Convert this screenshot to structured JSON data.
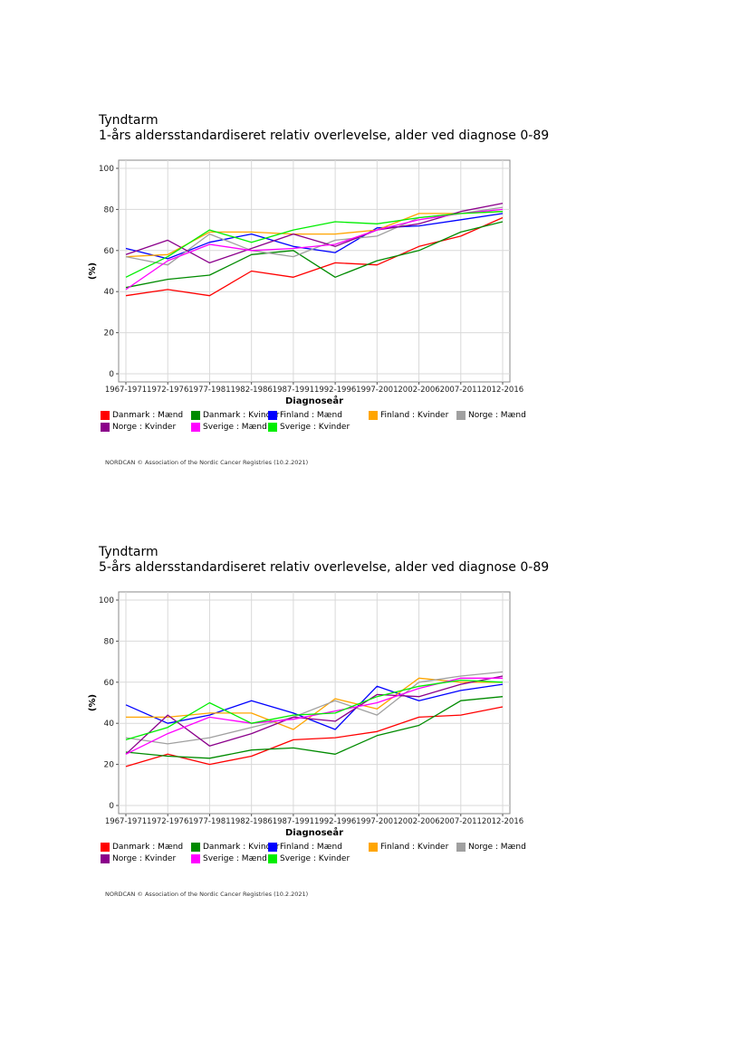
{
  "chart_data": [
    {
      "type": "line",
      "title": "Tyndtarm",
      "subtitle": "1-års aldersstandardiseret relativ overlevelse, alder ved diagnose 0-89",
      "xlabel": "Diagnoseår",
      "ylabel": "(%)",
      "ylim": [
        0,
        100
      ],
      "yticks": [
        "0",
        "20",
        "40",
        "60",
        "80",
        "100"
      ],
      "categories": [
        "1967-1971",
        "1972-1976",
        "1977-1981",
        "1982-1986",
        "1987-1991",
        "1992-1996",
        "1997-2001",
        "2002-2006",
        "2007-2011",
        "2012-2016"
      ],
      "grid": true,
      "legend_position": "bottom",
      "series": [
        {
          "name": "Danmark : Mænd",
          "color": "#ff0000",
          "values": [
            38,
            41,
            38,
            50,
            47,
            54,
            53,
            62,
            67,
            76
          ]
        },
        {
          "name": "Danmark : Kvinder",
          "color": "#008b00",
          "values": [
            42,
            46,
            48,
            58,
            60,
            47,
            55,
            60,
            69,
            74
          ]
        },
        {
          "name": "Finland : Mænd",
          "color": "#0000ff",
          "values": [
            61,
            56,
            64,
            68,
            62,
            59,
            71,
            72,
            75,
            78
          ]
        },
        {
          "name": "Finland : Kvinder",
          "color": "#ffa500",
          "values": [
            57,
            58,
            69,
            69,
            68,
            68,
            70,
            78,
            78,
            79
          ]
        },
        {
          "name": "Norge : Mænd",
          "color": "#a0a0a0",
          "values": [
            57,
            53,
            68,
            60,
            57,
            65,
            67,
            76,
            78,
            81
          ]
        },
        {
          "name": "Norge : Kvinder",
          "color": "#8b008b",
          "values": [
            58,
            65,
            54,
            61,
            68,
            62,
            70,
            73,
            79,
            83
          ]
        },
        {
          "name": "Sverige : Mænd",
          "color": "#ff00ff",
          "values": [
            41,
            55,
            63,
            60,
            61,
            63,
            70,
            75,
            78,
            80
          ]
        },
        {
          "name": "Sverige : Kvinder",
          "color": "#00ee00",
          "values": [
            47,
            57,
            70,
            64,
            70,
            74,
            73,
            76,
            78,
            79
          ]
        }
      ],
      "credit": "NORDCAN © Association of the Nordic Cancer Registries (10.2.2021)"
    },
    {
      "type": "line",
      "title": "Tyndtarm",
      "subtitle": "5-års aldersstandardiseret relativ overlevelse, alder ved diagnose 0-89",
      "xlabel": "Diagnoseår",
      "ylabel": "(%)",
      "ylim": [
        0,
        100
      ],
      "yticks": [
        "0",
        "20",
        "40",
        "60",
        "80",
        "100"
      ],
      "categories": [
        "1967-1971",
        "1972-1976",
        "1977-1981",
        "1982-1986",
        "1987-1991",
        "1992-1996",
        "1997-2001",
        "2002-2006",
        "2007-2011",
        "2012-2016"
      ],
      "grid": true,
      "legend_position": "bottom",
      "series": [
        {
          "name": "Danmark : Mænd",
          "color": "#ff0000",
          "values": [
            19,
            25,
            20,
            24,
            32,
            33,
            36,
            43,
            44,
            48
          ]
        },
        {
          "name": "Danmark : Kvinder",
          "color": "#008b00",
          "values": [
            26,
            24,
            23,
            27,
            28,
            25,
            34,
            39,
            51,
            53
          ]
        },
        {
          "name": "Finland : Mænd",
          "color": "#0000ff",
          "values": [
            49,
            40,
            44,
            51,
            45,
            37,
            58,
            51,
            56,
            59
          ]
        },
        {
          "name": "Finland : Kvinder",
          "color": "#ffa500",
          "values": [
            43,
            43,
            45,
            45,
            37,
            52,
            47,
            62,
            60,
            60
          ]
        },
        {
          "name": "Norge : Mænd",
          "color": "#a0a0a0",
          "values": [
            33,
            30,
            33,
            38,
            43,
            51,
            44,
            60,
            63,
            65
          ]
        },
        {
          "name": "Norge : Kvinder",
          "color": "#8b008b",
          "values": [
            25,
            44,
            29,
            35,
            43,
            41,
            54,
            53,
            59,
            63
          ]
        },
        {
          "name": "Sverige : Mænd",
          "color": "#ff00ff",
          "values": [
            25,
            35,
            43,
            40,
            42,
            46,
            50,
            57,
            62,
            62
          ]
        },
        {
          "name": "Sverige : Kvinder",
          "color": "#00ee00",
          "values": [
            32,
            38,
            50,
            40,
            44,
            45,
            53,
            58,
            61,
            60
          ]
        }
      ],
      "credit": "NORDCAN © Association of the Nordic Cancer Registries (10.2.2021)"
    }
  ]
}
